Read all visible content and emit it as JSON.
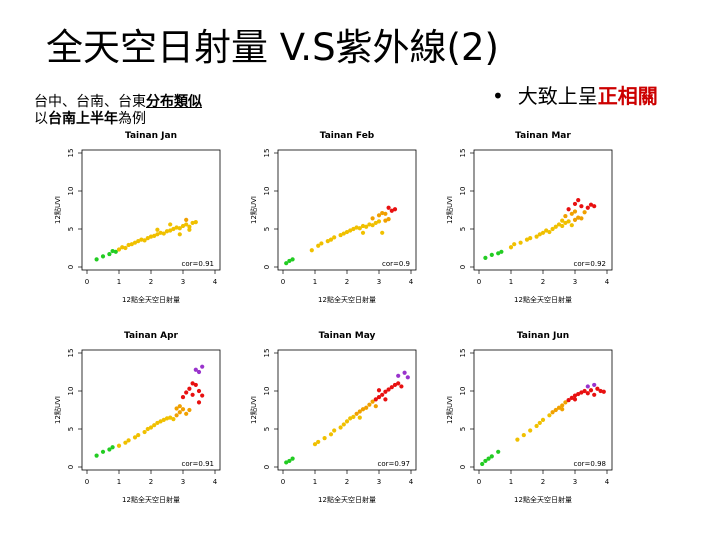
{
  "slide": {
    "title": "全天空日射量 V.S紫外線(2)",
    "note_line1_prefix": "台中、台南、台東",
    "note_line1_emph": "分布類似",
    "note_line2_prefix": "以",
    "note_line2_emph": "台南上半年",
    "note_line2_suffix": "為例",
    "bullet_prefix": "大致上呈",
    "bullet_emph": "正相關",
    "bullet_symbol": "•"
  },
  "colors": {
    "green": "#22cc22",
    "yellow": "#f0c000",
    "orange": "#f0a000",
    "red": "#e81010",
    "purple": "#9933cc"
  },
  "chart_data": [
    {
      "type": "scatter",
      "title": "Tainan Jan",
      "xlabel": "12點全天空日射量",
      "ylabel": "12點UVI",
      "xlim": [
        0,
        4
      ],
      "ylim": [
        0,
        15
      ],
      "xticks": [
        0,
        1,
        2,
        3,
        4
      ],
      "yticks": [
        0,
        5,
        10,
        15
      ],
      "annotation": "cor=0.91",
      "points": [
        [
          0.3,
          1.0,
          "green"
        ],
        [
          0.5,
          1.4,
          "green"
        ],
        [
          0.7,
          1.7,
          "green"
        ],
        [
          0.8,
          2.1,
          "green"
        ],
        [
          0.9,
          2.0,
          "green"
        ],
        [
          1.0,
          2.3,
          "yellow"
        ],
        [
          1.1,
          2.6,
          "yellow"
        ],
        [
          1.2,
          2.5,
          "yellow"
        ],
        [
          1.3,
          2.9,
          "yellow"
        ],
        [
          1.4,
          3.0,
          "yellow"
        ],
        [
          1.5,
          3.2,
          "yellow"
        ],
        [
          1.6,
          3.4,
          "yellow"
        ],
        [
          1.7,
          3.6,
          "yellow"
        ],
        [
          1.8,
          3.5,
          "yellow"
        ],
        [
          1.9,
          3.8,
          "yellow"
        ],
        [
          2.0,
          4.0,
          "yellow"
        ],
        [
          2.1,
          4.1,
          "yellow"
        ],
        [
          2.2,
          4.3,
          "yellow"
        ],
        [
          2.3,
          4.5,
          "yellow"
        ],
        [
          2.4,
          4.4,
          "yellow"
        ],
        [
          2.5,
          4.7,
          "yellow"
        ],
        [
          2.6,
          4.8,
          "yellow"
        ],
        [
          2.7,
          5.0,
          "yellow"
        ],
        [
          2.8,
          5.2,
          "yellow"
        ],
        [
          2.9,
          5.1,
          "yellow"
        ],
        [
          3.0,
          5.4,
          "yellow"
        ],
        [
          3.1,
          5.6,
          "yellow"
        ],
        [
          3.2,
          5.3,
          "yellow"
        ],
        [
          3.3,
          5.8,
          "yellow"
        ],
        [
          3.4,
          5.9,
          "yellow"
        ],
        [
          3.1,
          6.2,
          "orange"
        ],
        [
          2.6,
          5.6,
          "yellow"
        ],
        [
          2.2,
          4.9,
          "yellow"
        ],
        [
          3.2,
          4.9,
          "yellow"
        ],
        [
          2.9,
          4.3,
          "yellow"
        ]
      ]
    },
    {
      "type": "scatter",
      "title": "Tainan Feb",
      "xlabel": "12點全天空日射量",
      "ylabel": "12點UVI",
      "xlim": [
        0,
        4
      ],
      "ylim": [
        0,
        15
      ],
      "xticks": [
        0,
        1,
        2,
        3,
        4
      ],
      "yticks": [
        0,
        5,
        10,
        15
      ],
      "annotation": "cor=0.9",
      "points": [
        [
          0.1,
          0.5,
          "green"
        ],
        [
          0.2,
          0.8,
          "green"
        ],
        [
          0.3,
          1.0,
          "green"
        ],
        [
          0.9,
          2.2,
          "yellow"
        ],
        [
          1.1,
          2.8,
          "yellow"
        ],
        [
          1.2,
          3.1,
          "yellow"
        ],
        [
          1.4,
          3.4,
          "yellow"
        ],
        [
          1.5,
          3.6,
          "yellow"
        ],
        [
          1.6,
          3.9,
          "yellow"
        ],
        [
          1.8,
          4.2,
          "yellow"
        ],
        [
          1.9,
          4.4,
          "yellow"
        ],
        [
          2.0,
          4.6,
          "yellow"
        ],
        [
          2.1,
          4.8,
          "yellow"
        ],
        [
          2.2,
          5.0,
          "yellow"
        ],
        [
          2.3,
          5.2,
          "yellow"
        ],
        [
          2.4,
          5.1,
          "yellow"
        ],
        [
          2.5,
          5.4,
          "yellow"
        ],
        [
          2.6,
          5.3,
          "yellow"
        ],
        [
          2.7,
          5.6,
          "yellow"
        ],
        [
          2.8,
          5.5,
          "yellow"
        ],
        [
          2.9,
          5.8,
          "yellow"
        ],
        [
          3.0,
          6.0,
          "yellow"
        ],
        [
          3.1,
          4.5,
          "yellow"
        ],
        [
          3.2,
          6.1,
          "orange"
        ],
        [
          3.3,
          6.3,
          "orange"
        ],
        [
          2.8,
          6.4,
          "orange"
        ],
        [
          3.0,
          6.8,
          "orange"
        ],
        [
          3.2,
          7.0,
          "orange"
        ],
        [
          3.4,
          7.4,
          "red"
        ],
        [
          3.3,
          7.8,
          "red"
        ],
        [
          3.5,
          7.6,
          "red"
        ],
        [
          3.1,
          7.1,
          "orange"
        ],
        [
          2.5,
          4.5,
          "yellow"
        ]
      ]
    },
    {
      "type": "scatter",
      "title": "Tainan Mar",
      "xlabel": "12點全天空日射量",
      "ylabel": "12點UVI",
      "xlim": [
        0,
        4
      ],
      "ylim": [
        0,
        15
      ],
      "xticks": [
        0,
        1,
        2,
        3,
        4
      ],
      "yticks": [
        0,
        5,
        10,
        15
      ],
      "annotation": "cor=0.92",
      "points": [
        [
          0.2,
          1.2,
          "green"
        ],
        [
          0.4,
          1.6,
          "green"
        ],
        [
          0.6,
          1.8,
          "green"
        ],
        [
          0.7,
          2.0,
          "green"
        ],
        [
          1.0,
          2.6,
          "yellow"
        ],
        [
          1.1,
          3.0,
          "yellow"
        ],
        [
          1.3,
          3.2,
          "yellow"
        ],
        [
          1.5,
          3.6,
          "yellow"
        ],
        [
          1.6,
          3.8,
          "yellow"
        ],
        [
          1.8,
          4.0,
          "yellow"
        ],
        [
          1.9,
          4.3,
          "yellow"
        ],
        [
          2.0,
          4.5,
          "yellow"
        ],
        [
          2.1,
          4.8,
          "yellow"
        ],
        [
          2.2,
          4.6,
          "yellow"
        ],
        [
          2.3,
          5.0,
          "yellow"
        ],
        [
          2.4,
          5.3,
          "yellow"
        ],
        [
          2.5,
          5.6,
          "yellow"
        ],
        [
          2.6,
          5.4,
          "yellow"
        ],
        [
          2.7,
          5.8,
          "yellow"
        ],
        [
          2.8,
          6.0,
          "yellow"
        ],
        [
          2.9,
          5.5,
          "yellow"
        ],
        [
          3.0,
          6.2,
          "orange"
        ],
        [
          3.1,
          6.5,
          "orange"
        ],
        [
          3.2,
          6.4,
          "orange"
        ],
        [
          2.7,
          6.7,
          "orange"
        ],
        [
          2.9,
          7.0,
          "orange"
        ],
        [
          3.0,
          7.3,
          "orange"
        ],
        [
          2.8,
          7.6,
          "red"
        ],
        [
          3.0,
          8.3,
          "red"
        ],
        [
          3.1,
          8.8,
          "red"
        ],
        [
          3.2,
          8.0,
          "red"
        ],
        [
          3.4,
          7.8,
          "red"
        ],
        [
          3.5,
          8.2,
          "red"
        ],
        [
          3.6,
          8.0,
          "red"
        ],
        [
          3.3,
          7.2,
          "orange"
        ],
        [
          2.6,
          6.1,
          "yellow"
        ]
      ]
    },
    {
      "type": "scatter",
      "title": "Tainan Apr",
      "xlabel": "12點全天空日射量",
      "ylabel": "12點UVI",
      "xlim": [
        0,
        4
      ],
      "ylim": [
        0,
        15
      ],
      "xticks": [
        0,
        1,
        2,
        3,
        4
      ],
      "yticks": [
        0,
        5,
        10,
        15
      ],
      "annotation": "cor=0.91",
      "points": [
        [
          0.3,
          1.5,
          "green"
        ],
        [
          0.5,
          2.0,
          "green"
        ],
        [
          0.7,
          2.3,
          "green"
        ],
        [
          0.8,
          2.6,
          "green"
        ],
        [
          1.0,
          2.8,
          "yellow"
        ],
        [
          1.2,
          3.2,
          "yellow"
        ],
        [
          1.3,
          3.5,
          "yellow"
        ],
        [
          1.5,
          3.9,
          "yellow"
        ],
        [
          1.6,
          4.2,
          "yellow"
        ],
        [
          1.8,
          4.6,
          "yellow"
        ],
        [
          1.9,
          5.0,
          "yellow"
        ],
        [
          2.0,
          5.2,
          "yellow"
        ],
        [
          2.1,
          5.5,
          "yellow"
        ],
        [
          2.2,
          5.8,
          "yellow"
        ],
        [
          2.3,
          6.0,
          "yellow"
        ],
        [
          2.4,
          6.2,
          "yellow"
        ],
        [
          2.5,
          6.4,
          "yellow"
        ],
        [
          2.6,
          6.5,
          "yellow"
        ],
        [
          2.7,
          6.3,
          "yellow"
        ],
        [
          2.8,
          6.8,
          "orange"
        ],
        [
          2.9,
          7.2,
          "orange"
        ],
        [
          3.0,
          7.6,
          "orange"
        ],
        [
          3.1,
          7.0,
          "orange"
        ],
        [
          3.2,
          7.5,
          "orange"
        ],
        [
          2.9,
          8.0,
          "orange"
        ],
        [
          3.0,
          9.2,
          "red"
        ],
        [
          3.1,
          9.8,
          "red"
        ],
        [
          3.2,
          10.3,
          "red"
        ],
        [
          3.3,
          9.5,
          "red"
        ],
        [
          3.4,
          10.8,
          "red"
        ],
        [
          3.5,
          10.0,
          "red"
        ],
        [
          3.6,
          9.4,
          "red"
        ],
        [
          3.3,
          11.0,
          "red"
        ],
        [
          3.5,
          8.5,
          "red"
        ],
        [
          3.4,
          12.8,
          "purple"
        ],
        [
          3.6,
          13.2,
          "purple"
        ],
        [
          3.5,
          12.5,
          "purple"
        ],
        [
          2.8,
          7.7,
          "orange"
        ]
      ]
    },
    {
      "type": "scatter",
      "title": "Tainan May",
      "xlabel": "12點全天空日射量",
      "ylabel": "12點UVI",
      "xlim": [
        0,
        4
      ],
      "ylim": [
        0,
        15
      ],
      "xticks": [
        0,
        1,
        2,
        3,
        4
      ],
      "yticks": [
        0,
        5,
        10,
        15
      ],
      "annotation": "cor=0.97",
      "points": [
        [
          0.1,
          0.6,
          "green"
        ],
        [
          0.2,
          0.8,
          "green"
        ],
        [
          0.3,
          1.1,
          "green"
        ],
        [
          1.0,
          3.0,
          "yellow"
        ],
        [
          1.1,
          3.3,
          "yellow"
        ],
        [
          1.3,
          3.8,
          "yellow"
        ],
        [
          1.5,
          4.3,
          "yellow"
        ],
        [
          1.6,
          4.8,
          "yellow"
        ],
        [
          1.8,
          5.2,
          "yellow"
        ],
        [
          1.9,
          5.6,
          "yellow"
        ],
        [
          2.0,
          6.0,
          "yellow"
        ],
        [
          2.1,
          6.4,
          "yellow"
        ],
        [
          2.2,
          6.6,
          "yellow"
        ],
        [
          2.3,
          7.0,
          "orange"
        ],
        [
          2.4,
          7.3,
          "orange"
        ],
        [
          2.5,
          7.6,
          "orange"
        ],
        [
          2.6,
          7.8,
          "orange"
        ],
        [
          2.7,
          8.2,
          "orange"
        ],
        [
          2.8,
          8.6,
          "orange"
        ],
        [
          2.9,
          8.9,
          "red"
        ],
        [
          3.0,
          9.2,
          "red"
        ],
        [
          3.1,
          9.5,
          "red"
        ],
        [
          3.2,
          9.9,
          "red"
        ],
        [
          3.3,
          10.2,
          "red"
        ],
        [
          3.4,
          10.5,
          "red"
        ],
        [
          3.5,
          10.8,
          "red"
        ],
        [
          3.6,
          11.0,
          "red"
        ],
        [
          3.7,
          10.6,
          "red"
        ],
        [
          3.0,
          10.1,
          "red"
        ],
        [
          3.2,
          8.9,
          "red"
        ],
        [
          3.6,
          12.0,
          "purple"
        ],
        [
          3.8,
          12.4,
          "purple"
        ],
        [
          3.9,
          11.8,
          "purple"
        ],
        [
          2.4,
          6.5,
          "yellow"
        ],
        [
          2.9,
          8.0,
          "orange"
        ]
      ]
    },
    {
      "type": "scatter",
      "title": "Tainan Jun",
      "xlabel": "12點全天空日射量",
      "ylabel": "12點UVI",
      "xlim": [
        0,
        4
      ],
      "ylim": [
        0,
        15
      ],
      "xticks": [
        0,
        1,
        2,
        3,
        4
      ],
      "yticks": [
        0,
        5,
        10,
        15
      ],
      "annotation": "cor=0.98",
      "points": [
        [
          0.1,
          0.4,
          "green"
        ],
        [
          0.2,
          0.8,
          "green"
        ],
        [
          0.3,
          1.1,
          "green"
        ],
        [
          0.4,
          1.4,
          "green"
        ],
        [
          0.6,
          2.0,
          "green"
        ],
        [
          1.2,
          3.6,
          "yellow"
        ],
        [
          1.4,
          4.2,
          "yellow"
        ],
        [
          1.6,
          4.8,
          "yellow"
        ],
        [
          1.8,
          5.4,
          "yellow"
        ],
        [
          1.9,
          5.8,
          "yellow"
        ],
        [
          2.0,
          6.2,
          "yellow"
        ],
        [
          2.2,
          6.8,
          "yellow"
        ],
        [
          2.3,
          7.2,
          "orange"
        ],
        [
          2.4,
          7.5,
          "orange"
        ],
        [
          2.5,
          7.8,
          "orange"
        ],
        [
          2.6,
          8.1,
          "orange"
        ],
        [
          2.7,
          8.5,
          "orange"
        ],
        [
          2.8,
          8.8,
          "red"
        ],
        [
          2.9,
          9.1,
          "red"
        ],
        [
          3.0,
          9.4,
          "red"
        ],
        [
          3.1,
          9.6,
          "red"
        ],
        [
          3.2,
          9.8,
          "red"
        ],
        [
          3.3,
          10.0,
          "red"
        ],
        [
          3.4,
          9.7,
          "red"
        ],
        [
          3.5,
          10.1,
          "red"
        ],
        [
          3.6,
          9.5,
          "red"
        ],
        [
          3.7,
          10.3,
          "red"
        ],
        [
          3.8,
          10.0,
          "red"
        ],
        [
          3.9,
          9.9,
          "red"
        ],
        [
          3.4,
          10.6,
          "purple"
        ],
        [
          3.6,
          10.8,
          "purple"
        ],
        [
          2.6,
          7.6,
          "orange"
        ],
        [
          3.0,
          8.9,
          "red"
        ]
      ]
    }
  ]
}
